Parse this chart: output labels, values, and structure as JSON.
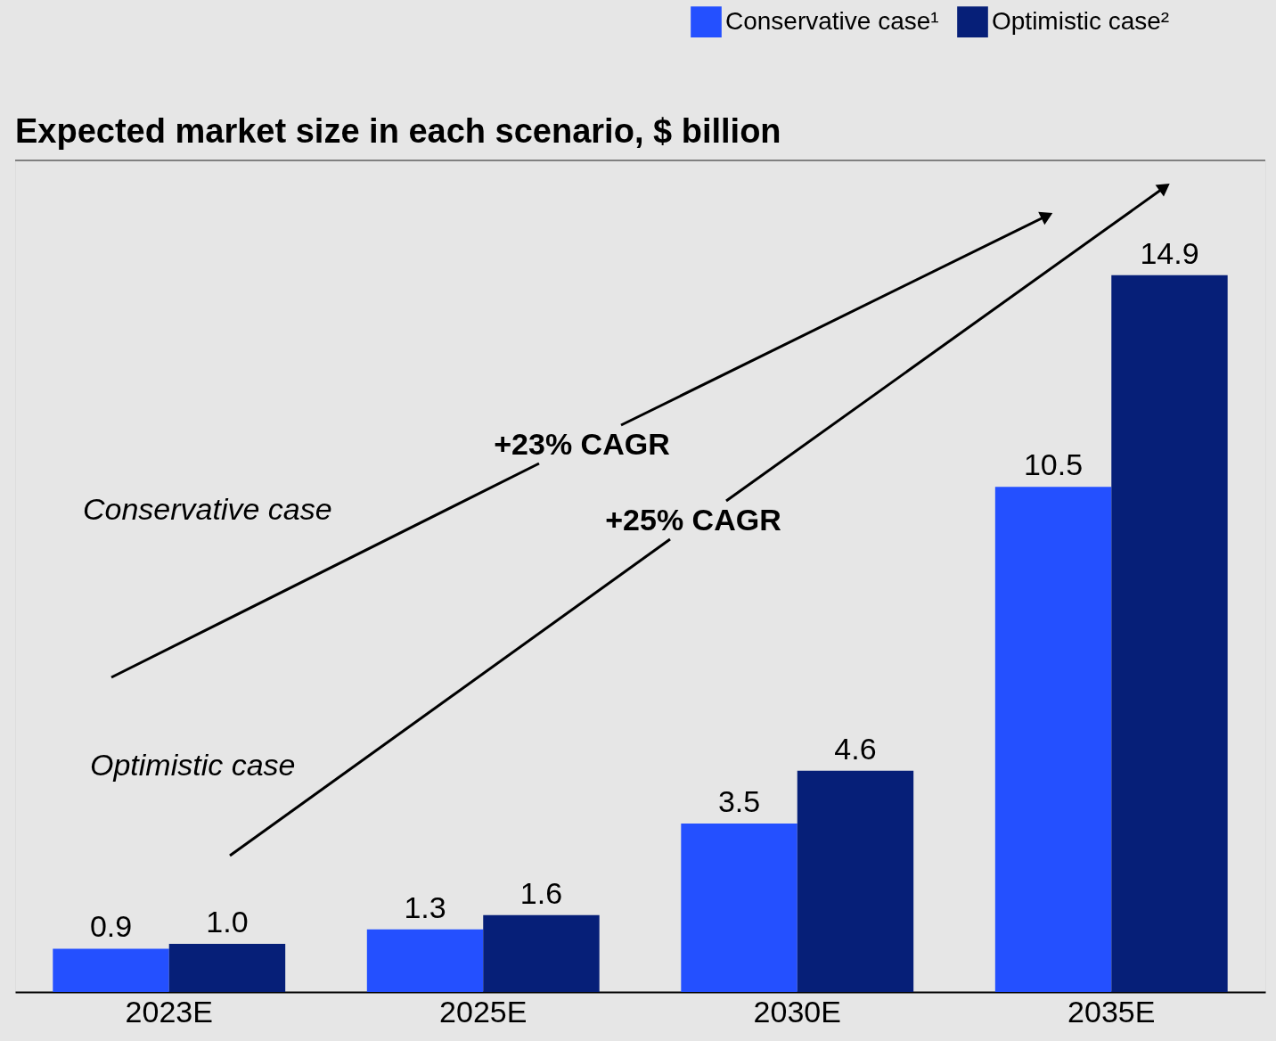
{
  "chart_data": {
    "type": "bar",
    "title": "Expected market size in each scenario, $ billion",
    "categories": [
      "2023E",
      "2025E",
      "2030E",
      "2035E"
    ],
    "series": [
      {
        "name": "Conservative case¹",
        "color": "#2450ff",
        "values": [
          0.9,
          1.3,
          3.5,
          10.5
        ],
        "value_labels": [
          "0.9",
          "1.3",
          "3.5",
          "10.5"
        ]
      },
      {
        "name": "Optimistic case²",
        "color": "#061f78",
        "values": [
          1.0,
          1.6,
          4.6,
          14.9
        ],
        "value_labels": [
          "1.0",
          "1.6",
          "4.6",
          "14.9"
        ]
      }
    ],
    "legend": "top right",
    "grid": false,
    "annotations": [
      "+23% CAGR",
      "+25% CAGR",
      "Conservative case",
      "Optimistic case"
    ]
  }
}
